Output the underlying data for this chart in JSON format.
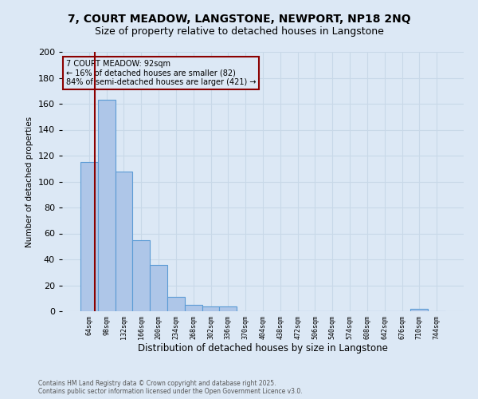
{
  "title": "7, COURT MEADOW, LANGSTONE, NEWPORT, NP18 2NQ",
  "subtitle": "Size of property relative to detached houses in Langstone",
  "xlabel": "Distribution of detached houses by size in Langstone",
  "ylabel": "Number of detached properties",
  "categories": [
    "64sqm",
    "98sqm",
    "132sqm",
    "166sqm",
    "200sqm",
    "234sqm",
    "268sqm",
    "302sqm",
    "336sqm",
    "370sqm",
    "404sqm",
    "438sqm",
    "472sqm",
    "506sqm",
    "540sqm",
    "574sqm",
    "608sqm",
    "642sqm",
    "676sqm",
    "710sqm",
    "744sqm"
  ],
  "values": [
    115,
    163,
    108,
    55,
    36,
    11,
    5,
    4,
    4,
    0,
    0,
    0,
    0,
    0,
    0,
    0,
    0,
    0,
    0,
    2,
    0
  ],
  "bar_color": "#aec6e8",
  "bar_edge_color": "#5b9bd5",
  "bar_edge_width": 0.8,
  "grid_color": "#c8d8e8",
  "bg_color": "#dce8f5",
  "vline_color": "#8b0000",
  "annotation_line1": "7 COURT MEADOW: 92sqm",
  "annotation_line2": "← 16% of detached houses are smaller (82)",
  "annotation_line3": "84% of semi-detached houses are larger (421) →",
  "annotation_box_color": "#8b0000",
  "ylim": [
    0,
    200
  ],
  "yticks": [
    0,
    20,
    40,
    60,
    80,
    100,
    120,
    140,
    160,
    180,
    200
  ],
  "footnote1": "Contains HM Land Registry data © Crown copyright and database right 2025.",
  "footnote2": "Contains public sector information licensed under the Open Government Licence v3.0.",
  "title_fontsize": 10,
  "subtitle_fontsize": 9
}
